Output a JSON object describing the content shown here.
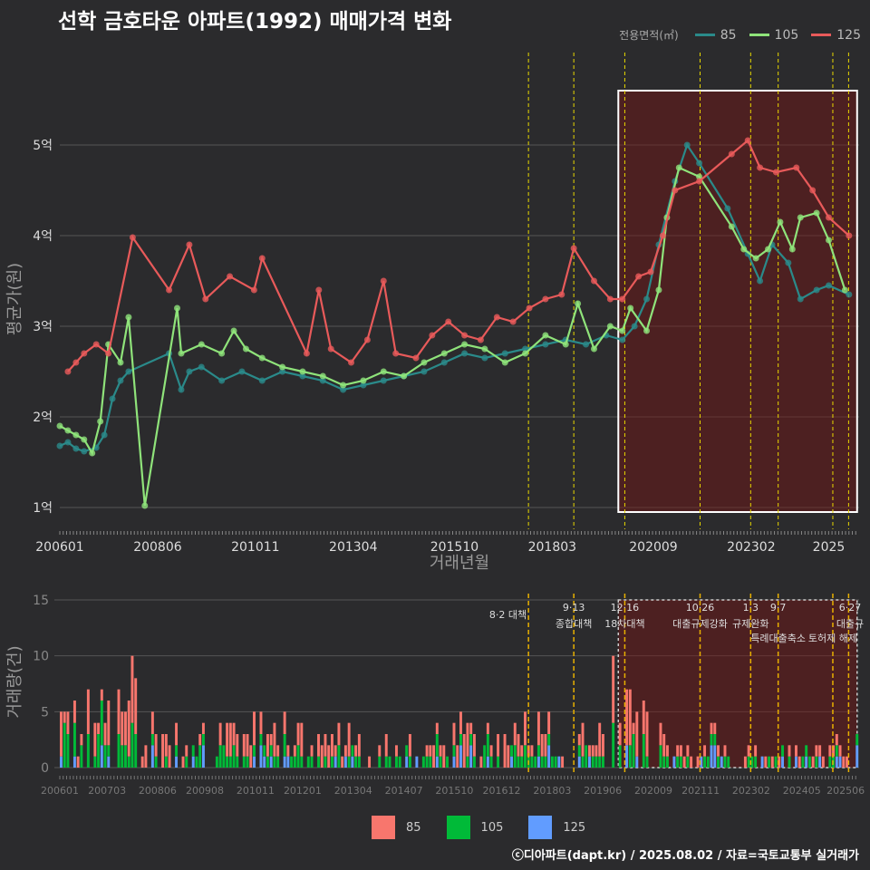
{
  "title": "선학 금호타운 아파트(1992) 매매가격 변화",
  "footer": "ⓒ디아파트(dapt.kr) / 2025.08.02 / 자료=국토교통부 실거래가",
  "colors": {
    "s85": "#2a8a8a",
    "s105": "#8fe37a",
    "s125": "#e85a5a",
    "bar85": "#f8766d",
    "bar105": "#00ba38",
    "bar125": "#619cff",
    "policy": "#e8d800"
  },
  "legend_top": {
    "title": "전용면적(㎡)",
    "items": [
      "85",
      "105",
      "125"
    ]
  },
  "legend_bottom": {
    "items": [
      "85",
      "105",
      "125"
    ]
  },
  "chart_data": [
    {
      "type": "line",
      "xlabel": "거래년월",
      "ylabel": "평균가(원)",
      "x_ticks": [
        "200601",
        "200806",
        "201011",
        "201304",
        "201510",
        "201803",
        "202009",
        "202302",
        "2025"
      ],
      "y_ticks": [
        {
          "value": 1,
          "label": "1억"
        },
        {
          "value": 2,
          "label": "2억"
        },
        {
          "value": 3,
          "label": "3억"
        },
        {
          "value": 4,
          "label": "4억"
        },
        {
          "value": 5,
          "label": "5억"
        }
      ],
      "ylim": [
        0.8,
        5.8
      ],
      "xlim": [
        2006.0,
        2025.75
      ],
      "policy_lines": [
        2017.58,
        2018.7,
        2019.96,
        2021.82,
        2023.07,
        2023.75,
        2025.1,
        2025.49
      ],
      "highlight_range": [
        2019.8,
        2025.7
      ],
      "highlight_y": [
        0.95,
        5.6
      ],
      "series": [
        {
          "name": "85",
          "key": "s85",
          "points": [
            [
              2006.0,
              1.68
            ],
            [
              2006.2,
              1.72
            ],
            [
              2006.4,
              1.65
            ],
            [
              2006.6,
              1.62
            ],
            [
              2006.9,
              1.66
            ],
            [
              2007.1,
              1.8
            ],
            [
              2007.3,
              2.2
            ],
            [
              2007.5,
              2.4
            ],
            [
              2007.7,
              2.5
            ],
            [
              2008.7,
              2.7
            ],
            [
              2009.0,
              2.3
            ],
            [
              2009.2,
              2.5
            ],
            [
              2009.5,
              2.55
            ],
            [
              2010.0,
              2.4
            ],
            [
              2010.5,
              2.5
            ],
            [
              2011.0,
              2.4
            ],
            [
              2011.5,
              2.5
            ],
            [
              2012.0,
              2.45
            ],
            [
              2012.5,
              2.4
            ],
            [
              2013.0,
              2.3
            ],
            [
              2013.5,
              2.35
            ],
            [
              2014.0,
              2.4
            ],
            [
              2014.5,
              2.45
            ],
            [
              2015.0,
              2.5
            ],
            [
              2015.5,
              2.6
            ],
            [
              2016.0,
              2.7
            ],
            [
              2016.5,
              2.65
            ],
            [
              2017.0,
              2.7
            ],
            [
              2017.5,
              2.75
            ],
            [
              2018.0,
              2.8
            ],
            [
              2018.5,
              2.85
            ],
            [
              2019.0,
              2.8
            ],
            [
              2019.5,
              2.9
            ],
            [
              2019.9,
              2.85
            ],
            [
              2020.2,
              3.0
            ],
            [
              2020.5,
              3.3
            ],
            [
              2020.8,
              3.9
            ],
            [
              2021.2,
              4.6
            ],
            [
              2021.5,
              5.0
            ],
            [
              2021.8,
              4.8
            ],
            [
              2022.5,
              4.3
            ],
            [
              2023.0,
              3.8
            ],
            [
              2023.3,
              3.5
            ],
            [
              2023.6,
              3.9
            ],
            [
              2024.0,
              3.7
            ],
            [
              2024.3,
              3.3
            ],
            [
              2024.7,
              3.4
            ],
            [
              2025.0,
              3.45
            ],
            [
              2025.5,
              3.35
            ]
          ]
        },
        {
          "name": "105",
          "key": "s105",
          "points": [
            [
              2006.0,
              1.9
            ],
            [
              2006.2,
              1.85
            ],
            [
              2006.4,
              1.8
            ],
            [
              2006.6,
              1.75
            ],
            [
              2006.8,
              1.6
            ],
            [
              2007.0,
              1.95
            ],
            [
              2007.2,
              2.8
            ],
            [
              2007.5,
              2.6
            ],
            [
              2007.7,
              3.1
            ],
            [
              2008.1,
              1.02
            ],
            [
              2008.9,
              3.2
            ],
            [
              2009.0,
              2.7
            ],
            [
              2009.5,
              2.8
            ],
            [
              2010.0,
              2.7
            ],
            [
              2010.3,
              2.95
            ],
            [
              2010.6,
              2.75
            ],
            [
              2011.0,
              2.65
            ],
            [
              2011.5,
              2.55
            ],
            [
              2012.0,
              2.5
            ],
            [
              2012.5,
              2.45
            ],
            [
              2013.0,
              2.35
            ],
            [
              2013.5,
              2.4
            ],
            [
              2014.0,
              2.5
            ],
            [
              2014.5,
              2.45
            ],
            [
              2015.0,
              2.6
            ],
            [
              2015.5,
              2.7
            ],
            [
              2016.0,
              2.8
            ],
            [
              2016.5,
              2.75
            ],
            [
              2017.0,
              2.6
            ],
            [
              2017.5,
              2.7
            ],
            [
              2018.0,
              2.9
            ],
            [
              2018.5,
              2.8
            ],
            [
              2018.8,
              3.25
            ],
            [
              2019.2,
              2.75
            ],
            [
              2019.6,
              3.0
            ],
            [
              2019.9,
              2.95
            ],
            [
              2020.1,
              3.2
            ],
            [
              2020.5,
              2.95
            ],
            [
              2020.8,
              3.4
            ],
            [
              2021.0,
              4.2
            ],
            [
              2021.3,
              4.75
            ],
            [
              2021.8,
              4.65
            ],
            [
              2022.6,
              4.1
            ],
            [
              2022.9,
              3.85
            ],
            [
              2023.2,
              3.75
            ],
            [
              2023.5,
              3.85
            ],
            [
              2023.8,
              4.15
            ],
            [
              2024.1,
              3.85
            ],
            [
              2024.3,
              4.2
            ],
            [
              2024.7,
              4.25
            ],
            [
              2025.0,
              3.95
            ],
            [
              2025.4,
              3.4
            ]
          ]
        },
        {
          "name": "125",
          "key": "s125",
          "points": [
            [
              2006.2,
              2.5
            ],
            [
              2006.4,
              2.6
            ],
            [
              2006.6,
              2.7
            ],
            [
              2006.9,
              2.8
            ],
            [
              2007.2,
              2.7
            ],
            [
              2007.8,
              3.98
            ],
            [
              2008.7,
              3.4
            ],
            [
              2009.2,
              3.9
            ],
            [
              2009.6,
              3.3
            ],
            [
              2010.2,
              3.55
            ],
            [
              2010.8,
              3.4
            ],
            [
              2011.0,
              3.75
            ],
            [
              2012.1,
              2.7
            ],
            [
              2012.4,
              3.4
            ],
            [
              2012.7,
              2.75
            ],
            [
              2013.2,
              2.6
            ],
            [
              2013.6,
              2.85
            ],
            [
              2014.0,
              3.5
            ],
            [
              2014.3,
              2.7
            ],
            [
              2014.8,
              2.65
            ],
            [
              2015.2,
              2.9
            ],
            [
              2015.6,
              3.05
            ],
            [
              2016.0,
              2.9
            ],
            [
              2016.4,
              2.85
            ],
            [
              2016.8,
              3.1
            ],
            [
              2017.2,
              3.05
            ],
            [
              2017.6,
              3.2
            ],
            [
              2018.0,
              3.3
            ],
            [
              2018.4,
              3.35
            ],
            [
              2018.7,
              3.86
            ],
            [
              2019.2,
              3.5
            ],
            [
              2019.6,
              3.3
            ],
            [
              2019.9,
              3.3
            ],
            [
              2020.3,
              3.55
            ],
            [
              2020.6,
              3.6
            ],
            [
              2020.9,
              4.0
            ],
            [
              2021.2,
              4.5
            ],
            [
              2021.8,
              4.6
            ],
            [
              2022.6,
              4.9
            ],
            [
              2023.0,
              5.05
            ],
            [
              2023.3,
              4.75
            ],
            [
              2023.7,
              4.7
            ],
            [
              2024.2,
              4.75
            ],
            [
              2024.6,
              4.5
            ],
            [
              2025.0,
              4.2
            ],
            [
              2025.5,
              4.0
            ]
          ]
        }
      ]
    },
    {
      "type": "bar",
      "ylabel": "거래량(건)",
      "y_ticks": [
        0,
        5,
        10,
        15
      ],
      "ylim": [
        0,
        15
      ],
      "xlim": [
        2006.0,
        2025.75
      ],
      "x_ticks": [
        "200601",
        "200703",
        "200806",
        "200908",
        "201011",
        "201201",
        "201304",
        "201407",
        "201510",
        "201612",
        "201803",
        "201906",
        "202009",
        "202111",
        "202302",
        "202405",
        "202506"
      ],
      "policy_lines": [
        2017.58,
        2018.7,
        2019.96,
        2021.82,
        2023.07,
        2023.75,
        2025.1,
        2025.49
      ],
      "highlight_range": [
        2019.8,
        2025.7
      ],
      "annotations": [
        {
          "x": 2017.58,
          "date": "",
          "text": "8·2 대책"
        },
        {
          "x": 2018.7,
          "date": "9·13",
          "text": "종합대책"
        },
        {
          "x": 2019.96,
          "date": "12·16",
          "text": "18차대책"
        },
        {
          "x": 2021.82,
          "date": "10·26",
          "text": "대출규제강화"
        },
        {
          "x": 2023.07,
          "date": "1·3",
          "text": "규제완화"
        },
        {
          "x": 2023.75,
          "date": "9·7",
          "text": "특례대출축소"
        },
        {
          "x": 2025.1,
          "date": "",
          "text": "토허제 해제"
        },
        {
          "x": 2025.49,
          "date": "6·27",
          "text": "대출규"
        }
      ],
      "months": 236,
      "series": [
        {
          "name": "85",
          "key": "bar85"
        },
        {
          "name": "105",
          "key": "bar105"
        },
        {
          "name": "125",
          "key": "bar125"
        }
      ]
    }
  ]
}
